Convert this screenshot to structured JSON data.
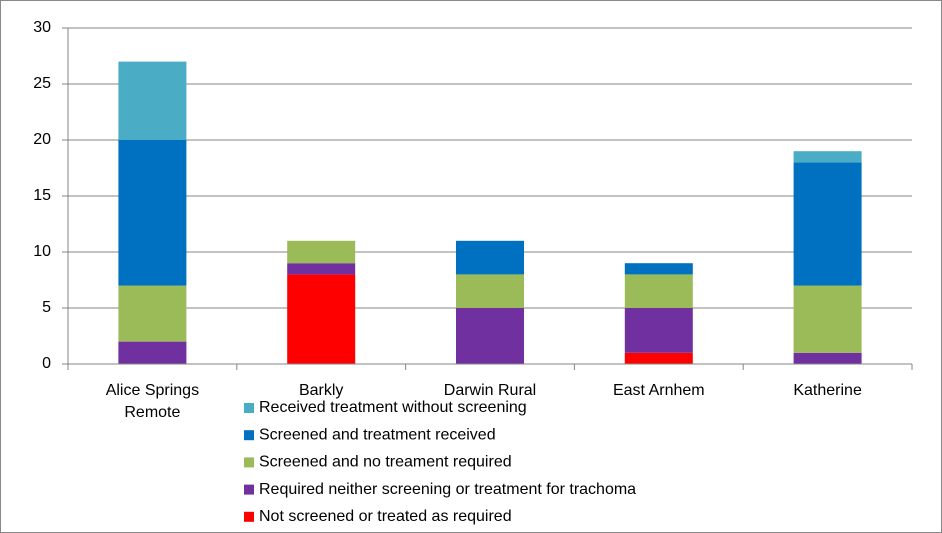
{
  "chart_data": {
    "type": "stacked_bar",
    "categories": [
      "Alice Springs Remote",
      "Barkly",
      "Darwin Rural",
      "East Arnhem",
      "Katherine"
    ],
    "series": [
      {
        "name": "Received treatment without screening",
        "color": "#4bacc6",
        "values": [
          7,
          0,
          0,
          0,
          1
        ]
      },
      {
        "name": "Screened and treatment received",
        "color": "#0070c0",
        "values": [
          13,
          0,
          3,
          1,
          11
        ]
      },
      {
        "name": "Screened and no treament required",
        "color": "#9bbb59",
        "values": [
          5,
          2,
          3,
          3,
          6
        ]
      },
      {
        "name": "Required neither screening or treatment for trachoma",
        "color": "#7030a0",
        "values": [
          2,
          1,
          5,
          4,
          1
        ]
      },
      {
        "name": "Not screened or treated as required",
        "color": "#ff0000",
        "values": [
          0,
          8,
          0,
          1,
          0
        ]
      }
    ],
    "ylim": [
      0,
      30
    ],
    "yticks": [
      0,
      5,
      10,
      15,
      20,
      25,
      30
    ],
    "grid": true,
    "legend": "bottom"
  }
}
